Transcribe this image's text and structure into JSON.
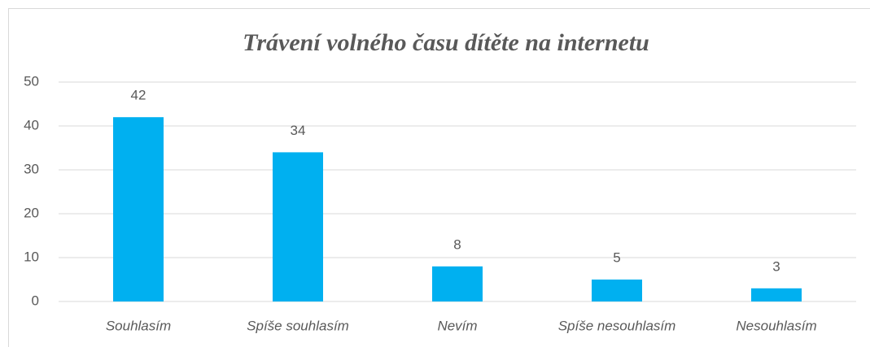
{
  "chart_data": {
    "type": "bar",
    "title": "Trávení volného času dítěte na internetu",
    "categories": [
      "Souhlasím",
      "Spíše souhlasím",
      "Nevím",
      "Spíše nesouhlasím",
      "Nesouhlasím"
    ],
    "values": [
      42,
      34,
      8,
      5,
      3
    ],
    "color": "#00b0f0",
    "ylim": [
      0,
      50
    ],
    "yticks": [
      0,
      10,
      20,
      30,
      40,
      50
    ],
    "grid": true
  }
}
